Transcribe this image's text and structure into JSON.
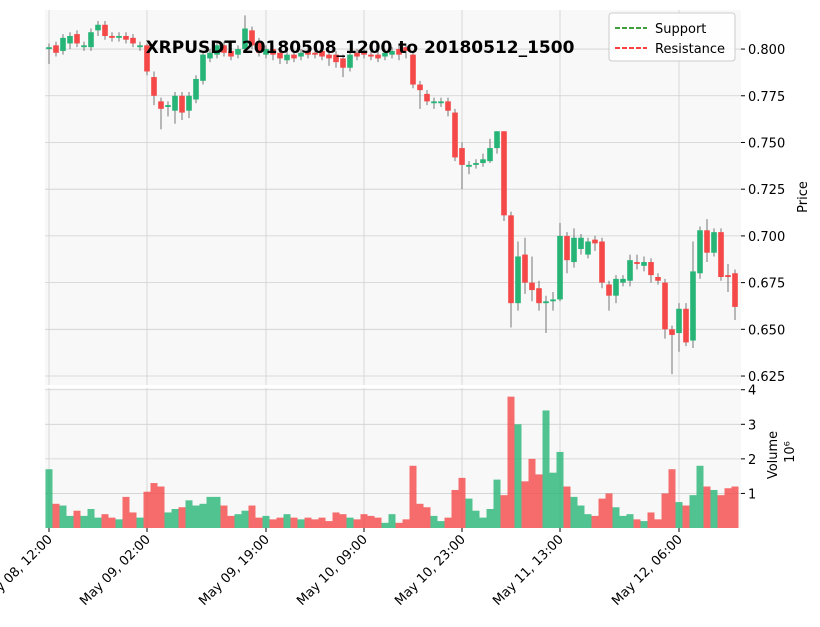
{
  "chart_data": {
    "type": "candlestick",
    "title": "XRPUSDT 20180508_1200 to 20180512_1500",
    "ylabel": "Price",
    "volume_label": "Volume",
    "volume_offset": "10⁶",
    "categories": [
      "May 08, 12:00",
      null,
      null,
      null,
      null,
      null,
      null,
      null,
      null,
      null,
      null,
      null,
      null,
      null,
      "May 09, 02:00",
      null,
      null,
      null,
      null,
      null,
      null,
      null,
      null,
      null,
      null,
      null,
      null,
      null,
      null,
      null,
      null,
      "May 09, 19:00",
      null,
      null,
      null,
      null,
      null,
      null,
      null,
      null,
      null,
      null,
      null,
      null,
      null,
      "May 10, 09:00",
      null,
      null,
      null,
      null,
      null,
      null,
      null,
      null,
      null,
      null,
      null,
      null,
      null,
      "May 10, 23:00",
      null,
      null,
      null,
      null,
      null,
      null,
      null,
      null,
      null,
      null,
      null,
      null,
      null,
      "May 11, 13:00",
      null,
      null,
      null,
      null,
      null,
      null,
      null,
      null,
      null,
      null,
      null,
      null,
      null,
      null,
      null,
      null,
      "May 12, 06:00",
      null,
      null,
      null,
      null,
      null,
      null,
      null,
      null
    ],
    "open": [
      0.8,
      0.802,
      0.799,
      0.803,
      0.808,
      0.801,
      0.801,
      0.81,
      0.813,
      0.807,
      0.806,
      0.807,
      0.806,
      0.801,
      0.802,
      0.785,
      0.772,
      0.769,
      0.767,
      0.775,
      0.767,
      0.773,
      0.783,
      0.795,
      0.797,
      0.802,
      0.799,
      0.797,
      0.8,
      0.81,
      0.804,
      0.797,
      0.8,
      0.798,
      0.794,
      0.797,
      0.796,
      0.799,
      0.798,
      0.799,
      0.797,
      0.797,
      0.795,
      0.79,
      0.798,
      0.799,
      0.797,
      0.797,
      0.796,
      0.797,
      0.8,
      0.801,
      0.797,
      0.781,
      0.776,
      0.771,
      0.771,
      0.772,
      0.766,
      0.747,
      0.737,
      0.738,
      0.739,
      0.74,
      0.747,
      0.756,
      0.711,
      0.664,
      0.69,
      0.675,
      0.672,
      0.664,
      0.665,
      0.666,
      0.7,
      0.686,
      0.693,
      0.69,
      0.698,
      0.697,
      0.674,
      0.668,
      0.675,
      0.676,
      0.686,
      0.684,
      0.686,
      0.678,
      0.675,
      0.65,
      0.648,
      0.661,
      0.644,
      0.68,
      0.703,
      0.691,
      0.702,
      0.679,
      0.68
    ],
    "high": [
      0.803,
      0.804,
      0.808,
      0.809,
      0.81,
      0.804,
      0.811,
      0.815,
      0.815,
      0.809,
      0.809,
      0.809,
      0.808,
      0.804,
      0.803,
      0.788,
      0.774,
      0.772,
      0.777,
      0.777,
      0.777,
      0.786,
      0.799,
      0.8,
      0.804,
      0.804,
      0.801,
      0.802,
      0.818,
      0.812,
      0.806,
      0.802,
      0.802,
      0.8,
      0.799,
      0.799,
      0.8,
      0.801,
      0.8,
      0.801,
      0.799,
      0.799,
      0.797,
      0.799,
      0.8,
      0.801,
      0.799,
      0.799,
      0.8,
      0.801,
      0.802,
      0.803,
      0.799,
      0.783,
      0.778,
      0.774,
      0.774,
      0.774,
      0.768,
      0.75,
      0.74,
      0.741,
      0.744,
      0.752,
      0.756,
      0.756,
      0.713,
      0.697,
      0.699,
      0.689,
      0.676,
      0.668,
      0.67,
      0.707,
      0.702,
      0.704,
      0.701,
      0.699,
      0.7,
      0.699,
      0.676,
      0.679,
      0.679,
      0.69,
      0.69,
      0.689,
      0.688,
      0.68,
      0.677,
      0.652,
      0.664,
      0.664,
      0.697,
      0.705,
      0.709,
      0.704,
      0.704,
      0.685,
      0.682
    ],
    "low": [
      0.792,
      0.796,
      0.797,
      0.8,
      0.801,
      0.799,
      0.799,
      0.807,
      0.805,
      0.804,
      0.804,
      0.803,
      0.801,
      0.799,
      0.786,
      0.77,
      0.757,
      0.764,
      0.76,
      0.762,
      0.763,
      0.771,
      0.781,
      0.793,
      0.795,
      0.796,
      0.794,
      0.795,
      0.798,
      0.8,
      0.796,
      0.795,
      0.794,
      0.792,
      0.792,
      0.793,
      0.794,
      0.795,
      0.795,
      0.794,
      0.791,
      0.79,
      0.785,
      0.788,
      0.794,
      0.795,
      0.794,
      0.793,
      0.794,
      0.795,
      0.794,
      0.795,
      0.779,
      0.768,
      0.77,
      0.768,
      0.769,
      0.764,
      0.74,
      0.725,
      0.733,
      0.736,
      0.737,
      0.739,
      0.744,
      0.708,
      0.651,
      0.66,
      0.669,
      0.665,
      0.66,
      0.648,
      0.66,
      0.665,
      0.68,
      0.683,
      0.69,
      0.688,
      0.692,
      0.672,
      0.66,
      0.664,
      0.673,
      0.673,
      0.682,
      0.681,
      0.675,
      0.674,
      0.645,
      0.626,
      0.638,
      0.641,
      0.64,
      0.677,
      0.686,
      0.689,
      0.676,
      0.67,
      0.655
    ],
    "close": [
      0.801,
      0.798,
      0.806,
      0.807,
      0.803,
      0.802,
      0.809,
      0.813,
      0.807,
      0.806,
      0.807,
      0.805,
      0.803,
      0.802,
      0.788,
      0.775,
      0.768,
      0.77,
      0.775,
      0.766,
      0.775,
      0.784,
      0.797,
      0.798,
      0.802,
      0.798,
      0.796,
      0.8,
      0.811,
      0.802,
      0.798,
      0.8,
      0.797,
      0.795,
      0.797,
      0.795,
      0.798,
      0.797,
      0.797,
      0.796,
      0.795,
      0.793,
      0.79,
      0.797,
      0.796,
      0.797,
      0.796,
      0.795,
      0.798,
      0.799,
      0.797,
      0.799,
      0.781,
      0.778,
      0.772,
      0.772,
      0.772,
      0.767,
      0.742,
      0.738,
      0.738,
      0.739,
      0.741,
      0.747,
      0.756,
      0.711,
      0.664,
      0.689,
      0.675,
      0.671,
      0.664,
      0.665,
      0.666,
      0.7,
      0.687,
      0.699,
      0.699,
      0.697,
      0.696,
      0.675,
      0.668,
      0.677,
      0.677,
      0.687,
      0.685,
      0.686,
      0.679,
      0.676,
      0.65,
      0.647,
      0.661,
      0.643,
      0.681,
      0.703,
      0.691,
      0.702,
      0.678,
      0.678,
      0.662
    ],
    "volume": [
      1.7,
      0.7,
      0.65,
      0.35,
      0.5,
      0.35,
      0.55,
      0.3,
      0.4,
      0.3,
      0.25,
      0.9,
      0.45,
      0.3,
      1.05,
      1.3,
      1.2,
      0.45,
      0.55,
      0.6,
      0.8,
      0.65,
      0.7,
      0.9,
      0.9,
      0.65,
      0.35,
      0.4,
      0.5,
      0.65,
      0.3,
      0.35,
      0.25,
      0.3,
      0.4,
      0.3,
      0.25,
      0.3,
      0.25,
      0.3,
      0.2,
      0.45,
      0.4,
      0.3,
      0.25,
      0.4,
      0.35,
      0.3,
      0.15,
      0.4,
      0.15,
      0.25,
      1.8,
      0.7,
      0.6,
      0.35,
      0.2,
      0.3,
      1.1,
      1.45,
      0.85,
      0.5,
      0.3,
      0.55,
      1.4,
      0.95,
      3.8,
      3.0,
      1.35,
      2.0,
      1.55,
      3.4,
      1.6,
      2.2,
      1.2,
      0.9,
      0.65,
      0.4,
      0.35,
      0.85,
      1.0,
      0.6,
      0.35,
      0.4,
      0.25,
      0.2,
      0.45,
      0.25,
      1.0,
      1.7,
      0.75,
      0.65,
      0.95,
      1.8,
      1.2,
      1.1,
      0.95,
      1.15,
      1.2
    ],
    "up_color": "#26b577",
    "down_color": "#f54848",
    "ylim": [
      0.6202,
      0.8209
    ],
    "yticks": [
      {
        "value": 0.625,
        "label": "0.625"
      },
      {
        "value": 0.65,
        "label": "0.650"
      },
      {
        "value": 0.675,
        "label": "0.675"
      },
      {
        "value": 0.7,
        "label": "0.700"
      },
      {
        "value": 0.725,
        "label": "0.725"
      },
      {
        "value": 0.75,
        "label": "0.750"
      },
      {
        "value": 0.775,
        "label": "0.775"
      },
      {
        "value": 0.8,
        "label": "0.800"
      }
    ],
    "volume_ylim": [
      0,
      4.05
    ],
    "volume_yticks": [
      1,
      2,
      3,
      4
    ],
    "grid": true,
    "legend_position": "upper right",
    "legend": [
      {
        "name": "Support",
        "color": "green"
      },
      {
        "name": "Resistance",
        "color": "red"
      }
    ]
  }
}
